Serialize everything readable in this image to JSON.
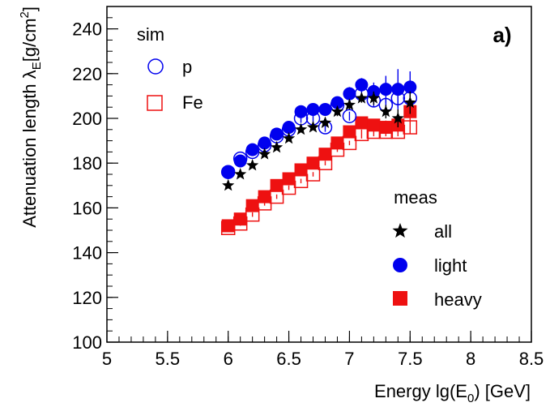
{
  "chart_data": {
    "type": "scatter",
    "panel_label": "a)",
    "xlabel": "Energy lg(E",
    "xlabel_sub": "0",
    "xlabel_end": ") [GeV]",
    "ylabel": "Attenuation length λ",
    "ylabel_sub": "E",
    "ylabel_mid": "[g/cm",
    "ylabel_sup": "2",
    "ylabel_end": "]",
    "xlim": [
      5,
      8.5
    ],
    "ylim": [
      100,
      250
    ],
    "xticks": [
      5,
      5.5,
      6,
      6.5,
      7,
      7.5,
      8,
      8.5
    ],
    "xtick_labels": [
      "5",
      "5.5",
      "6",
      "6.5",
      "7",
      "7.5",
      "8",
      "8.5"
    ],
    "yticks": [
      100,
      120,
      140,
      160,
      180,
      200,
      220,
      240
    ],
    "ytick_labels": [
      "100",
      "120",
      "140",
      "160",
      "180",
      "200",
      "220",
      "240"
    ],
    "grid": false,
    "x": [
      6.0,
      6.1,
      6.2,
      6.3,
      6.4,
      6.5,
      6.6,
      6.7,
      6.8,
      6.9,
      7.0,
      7.1,
      7.2,
      7.3,
      7.4,
      7.5
    ],
    "legend_sim": {
      "title": "sim",
      "entries": [
        {
          "label": "p",
          "marker": "circle-open",
          "color": "#0000ee"
        },
        {
          "label": "Fe",
          "marker": "square-open",
          "color": "#ee1111"
        }
      ]
    },
    "legend_meas": {
      "title": "meas",
      "entries": [
        {
          "label": "all",
          "marker": "star",
          "color": "#000000"
        },
        {
          "label": "light",
          "marker": "circle-filled",
          "color": "#0000ee"
        },
        {
          "label": "heavy",
          "marker": "square-filled",
          "color": "#ee1111"
        }
      ]
    },
    "series": [
      {
        "label": "p",
        "marker": "circle-open",
        "color": "#0000ee",
        "values": [
          176,
          182,
          185,
          188,
          192,
          195,
          200,
          200,
          196,
          206,
          201,
          211,
          208,
          206,
          209,
          209
        ],
        "errors": [
          1,
          1,
          1,
          1,
          1,
          1,
          2,
          2,
          2,
          2,
          2,
          3,
          3,
          3,
          4,
          5
        ]
      },
      {
        "label": "Fe",
        "marker": "square-open",
        "color": "#ee1111",
        "values": [
          151,
          153,
          157,
          162,
          165,
          169,
          172,
          175,
          180,
          186,
          189,
          193,
          194,
          194,
          194,
          196
        ],
        "errors": [
          1,
          1,
          1,
          1,
          1,
          1,
          1,
          1,
          1,
          1,
          1,
          2,
          2,
          2,
          2,
          3
        ]
      },
      {
        "label": "all",
        "marker": "star",
        "color": "#000000",
        "values": [
          170,
          175,
          179,
          184,
          187,
          191,
          195,
          196,
          198,
          203,
          206,
          209,
          209,
          203,
          200,
          207
        ],
        "errors": [
          1,
          1,
          1,
          1,
          1,
          1,
          1,
          1,
          1,
          2,
          2,
          2,
          3,
          3,
          4,
          5
        ]
      },
      {
        "label": "light",
        "marker": "circle-filled",
        "color": "#0000ee",
        "values": [
          176,
          181,
          186,
          189,
          193,
          196,
          203,
          204,
          204,
          207,
          211,
          215,
          212,
          213,
          213,
          214
        ],
        "errors": [
          1,
          1,
          1,
          1,
          1,
          1,
          2,
          2,
          2,
          2,
          3,
          3,
          4,
          6,
          9,
          7
        ]
      },
      {
        "label": "heavy",
        "marker": "square-filled",
        "color": "#ee1111",
        "values": [
          152,
          155,
          161,
          165,
          170,
          173,
          177,
          180,
          184,
          189,
          194,
          198,
          197,
          196,
          197,
          203
        ],
        "errors": [
          1,
          1,
          1,
          1,
          1,
          1,
          1,
          1,
          1,
          2,
          2,
          2,
          2,
          3,
          3,
          4
        ]
      }
    ]
  }
}
